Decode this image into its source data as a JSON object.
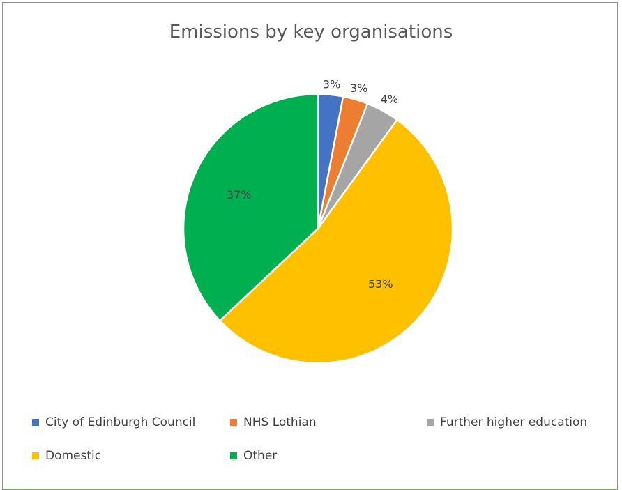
{
  "chart_data": {
    "type": "pie",
    "title": "Emissions by key organisations",
    "categories": [
      "City of Edinburgh Council",
      "NHS Lothian",
      "Further higher education",
      "Domestic",
      "Other"
    ],
    "values": [
      3,
      3,
      4,
      53,
      37
    ],
    "data_labels": [
      "3%",
      "3%",
      "4%",
      "53%",
      "37%"
    ],
    "colors": [
      "#4472c4",
      "#ed7d31",
      "#a5a5a5",
      "#ffc000",
      "#00b050"
    ],
    "legend_position": "bottom"
  }
}
